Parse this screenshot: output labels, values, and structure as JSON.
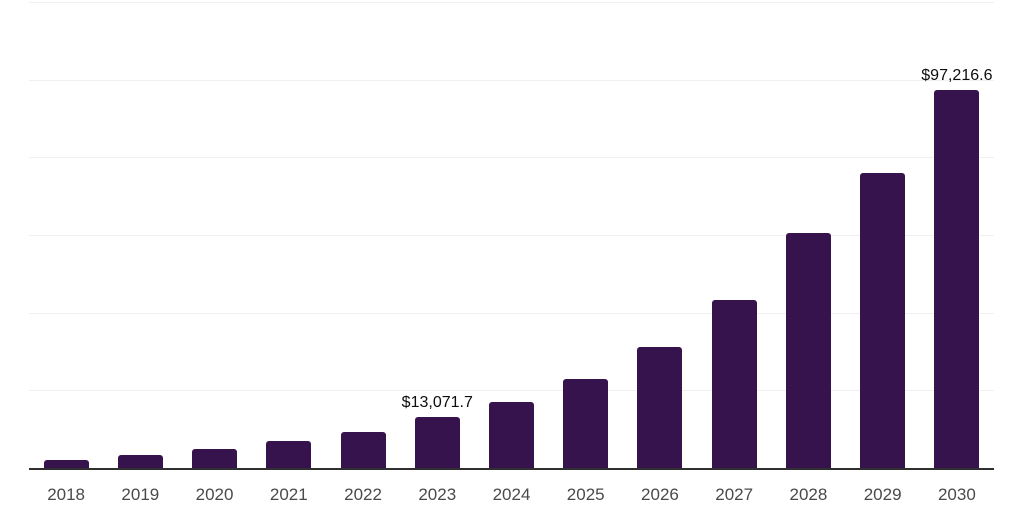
{
  "chart_data": {
    "type": "bar",
    "title": "",
    "xlabel": "",
    "ylabel": "",
    "categories": [
      "2018",
      "2019",
      "2020",
      "2021",
      "2022",
      "2023",
      "2024",
      "2025",
      "2026",
      "2027",
      "2028",
      "2029",
      "2030"
    ],
    "values": [
      2000,
      3400,
      4900,
      7000,
      9300,
      13071.7,
      17000,
      23000,
      31200,
      43300,
      60500,
      76000,
      97216.6
    ],
    "point_labels": {
      "2023": "$13,071.7",
      "2030": "$97,216.6"
    },
    "ylim": [
      0,
      120000
    ],
    "gridline_step": 20000,
    "grid": true,
    "legend": false,
    "colors": {
      "bar": "#37134d",
      "axis_line": "#303030",
      "gridline": "#f0f0f0",
      "tick_label": "#4a4a4a",
      "data_label": "#0d0d0d",
      "background": "#ffffff"
    }
  }
}
